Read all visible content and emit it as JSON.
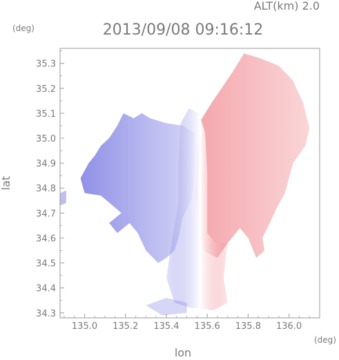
{
  "chart_data": {
    "type": "heatmap",
    "title": "2013/09/08 09:16:12",
    "subtitle": "ALT(km) 2.0",
    "xlabel": "lon",
    "ylabel": "lat",
    "x_unit": "(deg)",
    "y_unit": "(deg)",
    "xlim": [
      134.88,
      136.15
    ],
    "ylim": [
      34.28,
      35.36
    ],
    "x_ticks": [
      "135.0",
      "135.2",
      "135.4",
      "135.6",
      "135.8",
      "136.0"
    ],
    "y_ticks": [
      "34.3",
      "34.4",
      "34.5",
      "34.6",
      "34.7",
      "34.8",
      "34.9",
      "35.0",
      "35.1",
      "35.2",
      "35.3"
    ],
    "grid": false,
    "colormap": {
      "negative": "#8a8ae6",
      "zero": "#ffffff",
      "positive": "#f0888f"
    },
    "field_center": [
      135.53,
      34.8
    ],
    "coverage": {
      "east_lobe": [
        [
          135.56,
          35.06
        ],
        [
          135.62,
          35.14
        ],
        [
          135.67,
          35.2
        ],
        [
          135.72,
          35.26
        ],
        [
          135.78,
          35.34
        ],
        [
          135.86,
          35.32
        ],
        [
          135.95,
          35.29
        ],
        [
          136.02,
          35.23
        ],
        [
          136.07,
          35.14
        ],
        [
          136.1,
          35.04
        ],
        [
          136.08,
          34.97
        ],
        [
          136.02,
          34.9
        ],
        [
          136.0,
          34.84
        ],
        [
          135.98,
          34.78
        ],
        [
          135.94,
          34.72
        ],
        [
          135.9,
          34.65
        ],
        [
          135.87,
          34.6
        ],
        [
          135.88,
          34.55
        ],
        [
          135.84,
          34.52
        ],
        [
          135.8,
          34.6
        ],
        [
          135.76,
          34.64
        ],
        [
          135.7,
          34.58
        ],
        [
          135.65,
          34.52
        ],
        [
          135.58,
          34.55
        ],
        [
          135.54,
          34.78
        ]
      ],
      "center_band": [
        [
          135.47,
          35.06
        ],
        [
          135.51,
          35.12
        ],
        [
          135.56,
          35.1
        ],
        [
          135.59,
          35.02
        ],
        [
          135.6,
          34.86
        ],
        [
          135.6,
          34.62
        ],
        [
          135.64,
          34.58
        ],
        [
          135.7,
          34.58
        ],
        [
          135.68,
          34.44
        ],
        [
          135.7,
          34.34
        ],
        [
          135.63,
          34.31
        ],
        [
          135.52,
          34.32
        ],
        [
          135.44,
          34.34
        ],
        [
          135.4,
          34.44
        ],
        [
          135.42,
          34.55
        ],
        [
          135.44,
          34.65
        ],
        [
          135.46,
          34.75
        ],
        [
          135.46,
          34.9
        ]
      ],
      "west_lobe": [
        [
          135.19,
          35.1
        ],
        [
          135.24,
          35.08
        ],
        [
          135.28,
          35.1
        ],
        [
          135.32,
          35.08
        ],
        [
          135.4,
          35.06
        ],
        [
          135.48,
          35.05
        ],
        [
          135.54,
          35.02
        ],
        [
          135.54,
          34.85
        ],
        [
          135.52,
          34.75
        ],
        [
          135.48,
          34.68
        ],
        [
          135.46,
          34.6
        ],
        [
          135.44,
          34.55
        ],
        [
          135.4,
          34.52
        ],
        [
          135.36,
          34.5
        ],
        [
          135.3,
          34.55
        ],
        [
          135.26,
          34.62
        ],
        [
          135.22,
          34.66
        ],
        [
          135.16,
          34.62
        ],
        [
          135.12,
          34.66
        ],
        [
          135.18,
          34.7
        ],
        [
          135.08,
          34.77
        ],
        [
          135.0,
          34.78
        ],
        [
          134.98,
          34.84
        ],
        [
          135.02,
          34.9
        ],
        [
          135.05,
          34.93
        ],
        [
          135.08,
          34.97
        ],
        [
          135.12,
          35.0
        ],
        [
          135.16,
          35.05
        ]
      ],
      "south_blob": [
        [
          135.3,
          34.33
        ],
        [
          135.4,
          34.36
        ],
        [
          135.5,
          34.34
        ],
        [
          135.5,
          34.3
        ],
        [
          135.38,
          34.29
        ]
      ],
      "west_edge": [
        [
          134.88,
          34.78
        ],
        [
          134.91,
          34.79
        ],
        [
          134.91,
          34.74
        ],
        [
          134.88,
          34.73
        ]
      ]
    }
  }
}
